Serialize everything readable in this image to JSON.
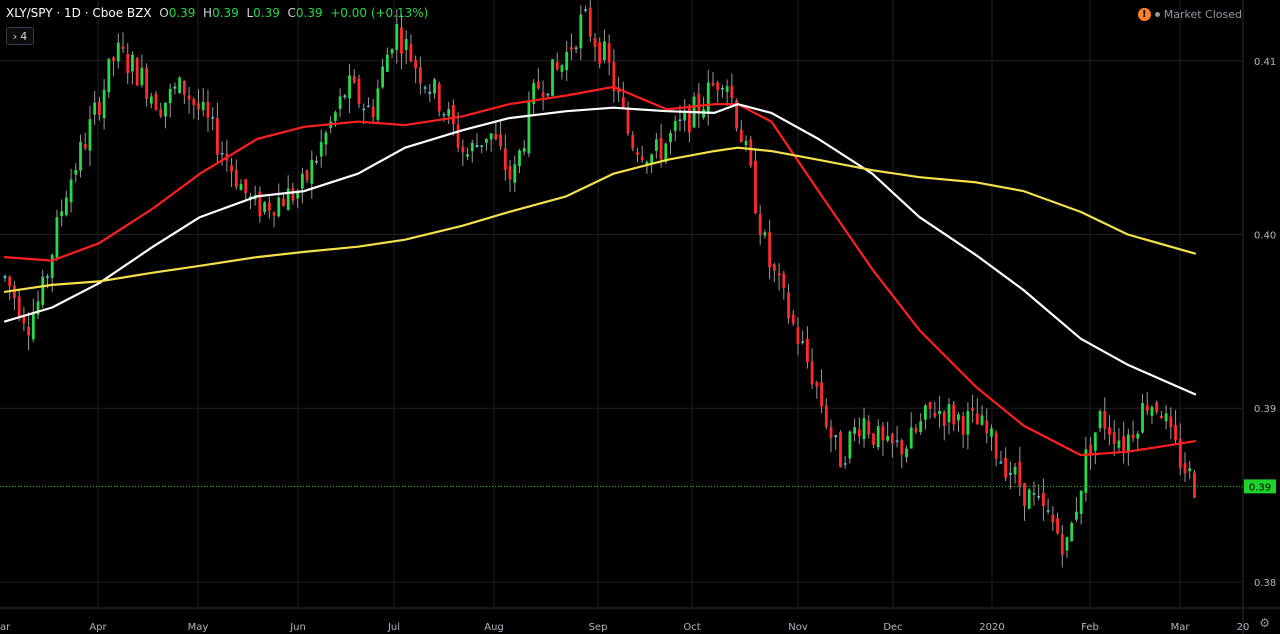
{
  "header": {
    "symbol": "XLY/SPY · 1D · Cboe BZX",
    "open_label": "O",
    "open_value": "0.39",
    "high_label": "H",
    "high_value": "0.39",
    "low_label": "L",
    "low_value": "0.39",
    "close_label": "C",
    "close_value": "0.39",
    "change": "+0.00 (+0.13%)",
    "collapse_count": "4"
  },
  "status": {
    "market": "Market Closed"
  },
  "colors": {
    "up": "#26d84a",
    "down": "#ff2a2a",
    "neutral": "#3fc7e8",
    "ma_fast": "#ff1f1f",
    "ma_mid": "#ffffff",
    "ma_slow": "#f5e04a",
    "price_line": "#1fd32b",
    "grid": "#1e2026",
    "background": "#000000"
  },
  "chart_data": {
    "type": "candlestick",
    "y_axis_ticks": [
      "0.41",
      "0.40",
      "0.39",
      "0.38"
    ],
    "y_axis_tick_values": [
      0.41,
      0.4,
      0.39,
      0.38
    ],
    "ylim": [
      0.3785,
      0.4135
    ],
    "x_axis_labels": [
      "ar",
      "Apr",
      "May",
      "Jun",
      "Jul",
      "Aug",
      "Sep",
      "Oct",
      "Nov",
      "Dec",
      "2020",
      "Feb",
      "Mar",
      "20"
    ],
    "date_range": [
      "2019-03-18",
      "2020-03-06"
    ],
    "last_price": 0.3855,
    "last_price_label": "0.39",
    "moving_averages": [
      {
        "color_key": "ma_fast",
        "points": [
          [
            "2019-03-18",
            0.3987
          ],
          [
            "2019-04-01",
            0.3985
          ],
          [
            "2019-04-15",
            0.3995
          ],
          [
            "2019-05-01",
            0.4015
          ],
          [
            "2019-05-15",
            0.4035
          ],
          [
            "2019-06-01",
            0.4055
          ],
          [
            "2019-06-15",
            0.4062
          ],
          [
            "2019-07-01",
            0.4065
          ],
          [
            "2019-07-15",
            0.4063
          ],
          [
            "2019-08-01",
            0.4068
          ],
          [
            "2019-08-15",
            0.4075
          ],
          [
            "2019-09-01",
            0.408
          ],
          [
            "2019-09-15",
            0.4085
          ],
          [
            "2019-10-01",
            0.4072
          ],
          [
            "2019-10-15",
            0.4075
          ],
          [
            "2019-10-22",
            0.4075
          ],
          [
            "2019-11-01",
            0.4065
          ],
          [
            "2019-11-15",
            0.4025
          ],
          [
            "2019-12-01",
            0.398
          ],
          [
            "2019-12-15",
            0.3945
          ],
          [
            "2020-01-01",
            0.3912
          ],
          [
            "2020-01-15",
            0.389
          ],
          [
            "2020-02-01",
            0.3873
          ],
          [
            "2020-02-15",
            0.3875
          ],
          [
            "2020-03-06",
            0.3881
          ]
        ]
      },
      {
        "color_key": "ma_mid",
        "points": [
          [
            "2019-03-18",
            0.395
          ],
          [
            "2019-04-01",
            0.3958
          ],
          [
            "2019-04-15",
            0.3972
          ],
          [
            "2019-05-01",
            0.3993
          ],
          [
            "2019-05-15",
            0.401
          ],
          [
            "2019-06-01",
            0.4022
          ],
          [
            "2019-06-15",
            0.4025
          ],
          [
            "2019-07-01",
            0.4035
          ],
          [
            "2019-07-15",
            0.405
          ],
          [
            "2019-08-01",
            0.406
          ],
          [
            "2019-08-15",
            0.4067
          ],
          [
            "2019-09-01",
            0.4071
          ],
          [
            "2019-09-15",
            0.4073
          ],
          [
            "2019-10-01",
            0.4071
          ],
          [
            "2019-10-15",
            0.407
          ],
          [
            "2019-10-22",
            0.4075
          ],
          [
            "2019-11-01",
            0.407
          ],
          [
            "2019-11-15",
            0.4055
          ],
          [
            "2019-12-01",
            0.4035
          ],
          [
            "2019-12-15",
            0.401
          ],
          [
            "2020-01-01",
            0.3988
          ],
          [
            "2020-01-15",
            0.3968
          ],
          [
            "2020-02-01",
            0.394
          ],
          [
            "2020-02-15",
            0.3925
          ],
          [
            "2020-03-06",
            0.3908
          ]
        ]
      },
      {
        "color_key": "ma_slow",
        "points": [
          [
            "2019-03-18",
            0.3967
          ],
          [
            "2019-04-01",
            0.3971
          ],
          [
            "2019-04-15",
            0.3973
          ],
          [
            "2019-05-01",
            0.3978
          ],
          [
            "2019-05-15",
            0.3982
          ],
          [
            "2019-06-01",
            0.3987
          ],
          [
            "2019-06-15",
            0.399
          ],
          [
            "2019-07-01",
            0.3993
          ],
          [
            "2019-07-15",
            0.3997
          ],
          [
            "2019-08-01",
            0.4005
          ],
          [
            "2019-08-15",
            0.4013
          ],
          [
            "2019-09-01",
            0.4022
          ],
          [
            "2019-09-15",
            0.4035
          ],
          [
            "2019-10-01",
            0.4043
          ],
          [
            "2019-10-15",
            0.4048
          ],
          [
            "2019-10-22",
            0.405
          ],
          [
            "2019-11-01",
            0.4048
          ],
          [
            "2019-11-15",
            0.4043
          ],
          [
            "2019-12-01",
            0.4037
          ],
          [
            "2019-12-15",
            0.4033
          ],
          [
            "2020-01-01",
            0.403
          ],
          [
            "2020-01-15",
            0.4025
          ],
          [
            "2020-02-01",
            0.4013
          ],
          [
            "2020-02-15",
            0.4
          ],
          [
            "2020-03-06",
            0.3989
          ]
        ]
      }
    ],
    "candle_path": [
      [
        "2019-03-18",
        0.3975
      ],
      [
        "2019-03-25",
        0.395
      ],
      [
        "2019-03-29",
        0.3965
      ],
      [
        "2019-04-05",
        0.4025
      ],
      [
        "2019-04-12",
        0.406
      ],
      [
        "2019-04-20",
        0.4105
      ],
      [
        "2019-04-26",
        0.4095
      ],
      [
        "2019-05-03",
        0.4075
      ],
      [
        "2019-05-10",
        0.4085
      ],
      [
        "2019-05-17",
        0.4065
      ],
      [
        "2019-05-24",
        0.404
      ],
      [
        "2019-05-31",
        0.4015
      ],
      [
        "2019-06-07",
        0.402
      ],
      [
        "2019-06-14",
        0.4025
      ],
      [
        "2019-06-21",
        0.4055
      ],
      [
        "2019-06-28",
        0.4085
      ],
      [
        "2019-07-05",
        0.407
      ],
      [
        "2019-07-12",
        0.412
      ],
      [
        "2019-07-19",
        0.4095
      ],
      [
        "2019-07-26",
        0.4075
      ],
      [
        "2019-08-02",
        0.4045
      ],
      [
        "2019-08-09",
        0.406
      ],
      [
        "2019-08-16",
        0.403
      ],
      [
        "2019-08-23",
        0.4085
      ],
      [
        "2019-08-30",
        0.4095
      ],
      [
        "2019-09-06",
        0.4125
      ],
      [
        "2019-09-13",
        0.41
      ],
      [
        "2019-09-20",
        0.4055
      ],
      [
        "2019-09-27",
        0.4045
      ],
      [
        "2019-10-04",
        0.406
      ],
      [
        "2019-10-11",
        0.4075
      ],
      [
        "2019-10-18",
        0.4095
      ],
      [
        "2019-10-24",
        0.405
      ],
      [
        "2019-10-31",
        0.3985
      ],
      [
        "2019-11-07",
        0.395
      ],
      [
        "2019-11-14",
        0.3915
      ],
      [
        "2019-11-21",
        0.387
      ],
      [
        "2019-11-28",
        0.3895
      ],
      [
        "2019-12-05",
        0.3875
      ],
      [
        "2019-12-12",
        0.388
      ],
      [
        "2019-12-19",
        0.39
      ],
      [
        "2019-12-26",
        0.3895
      ],
      [
        "2020-01-02",
        0.389
      ],
      [
        "2020-01-09",
        0.387
      ],
      [
        "2020-01-16",
        0.385
      ],
      [
        "2020-01-23",
        0.3835
      ],
      [
        "2020-01-28",
        0.382
      ],
      [
        "2020-02-03",
        0.3875
      ],
      [
        "2020-02-07",
        0.3895
      ],
      [
        "2020-02-14",
        0.388
      ],
      [
        "2020-02-21",
        0.3905
      ],
      [
        "2020-02-25",
        0.39
      ],
      [
        "2020-02-28",
        0.388
      ],
      [
        "2020-03-06",
        0.3855
      ]
    ]
  }
}
